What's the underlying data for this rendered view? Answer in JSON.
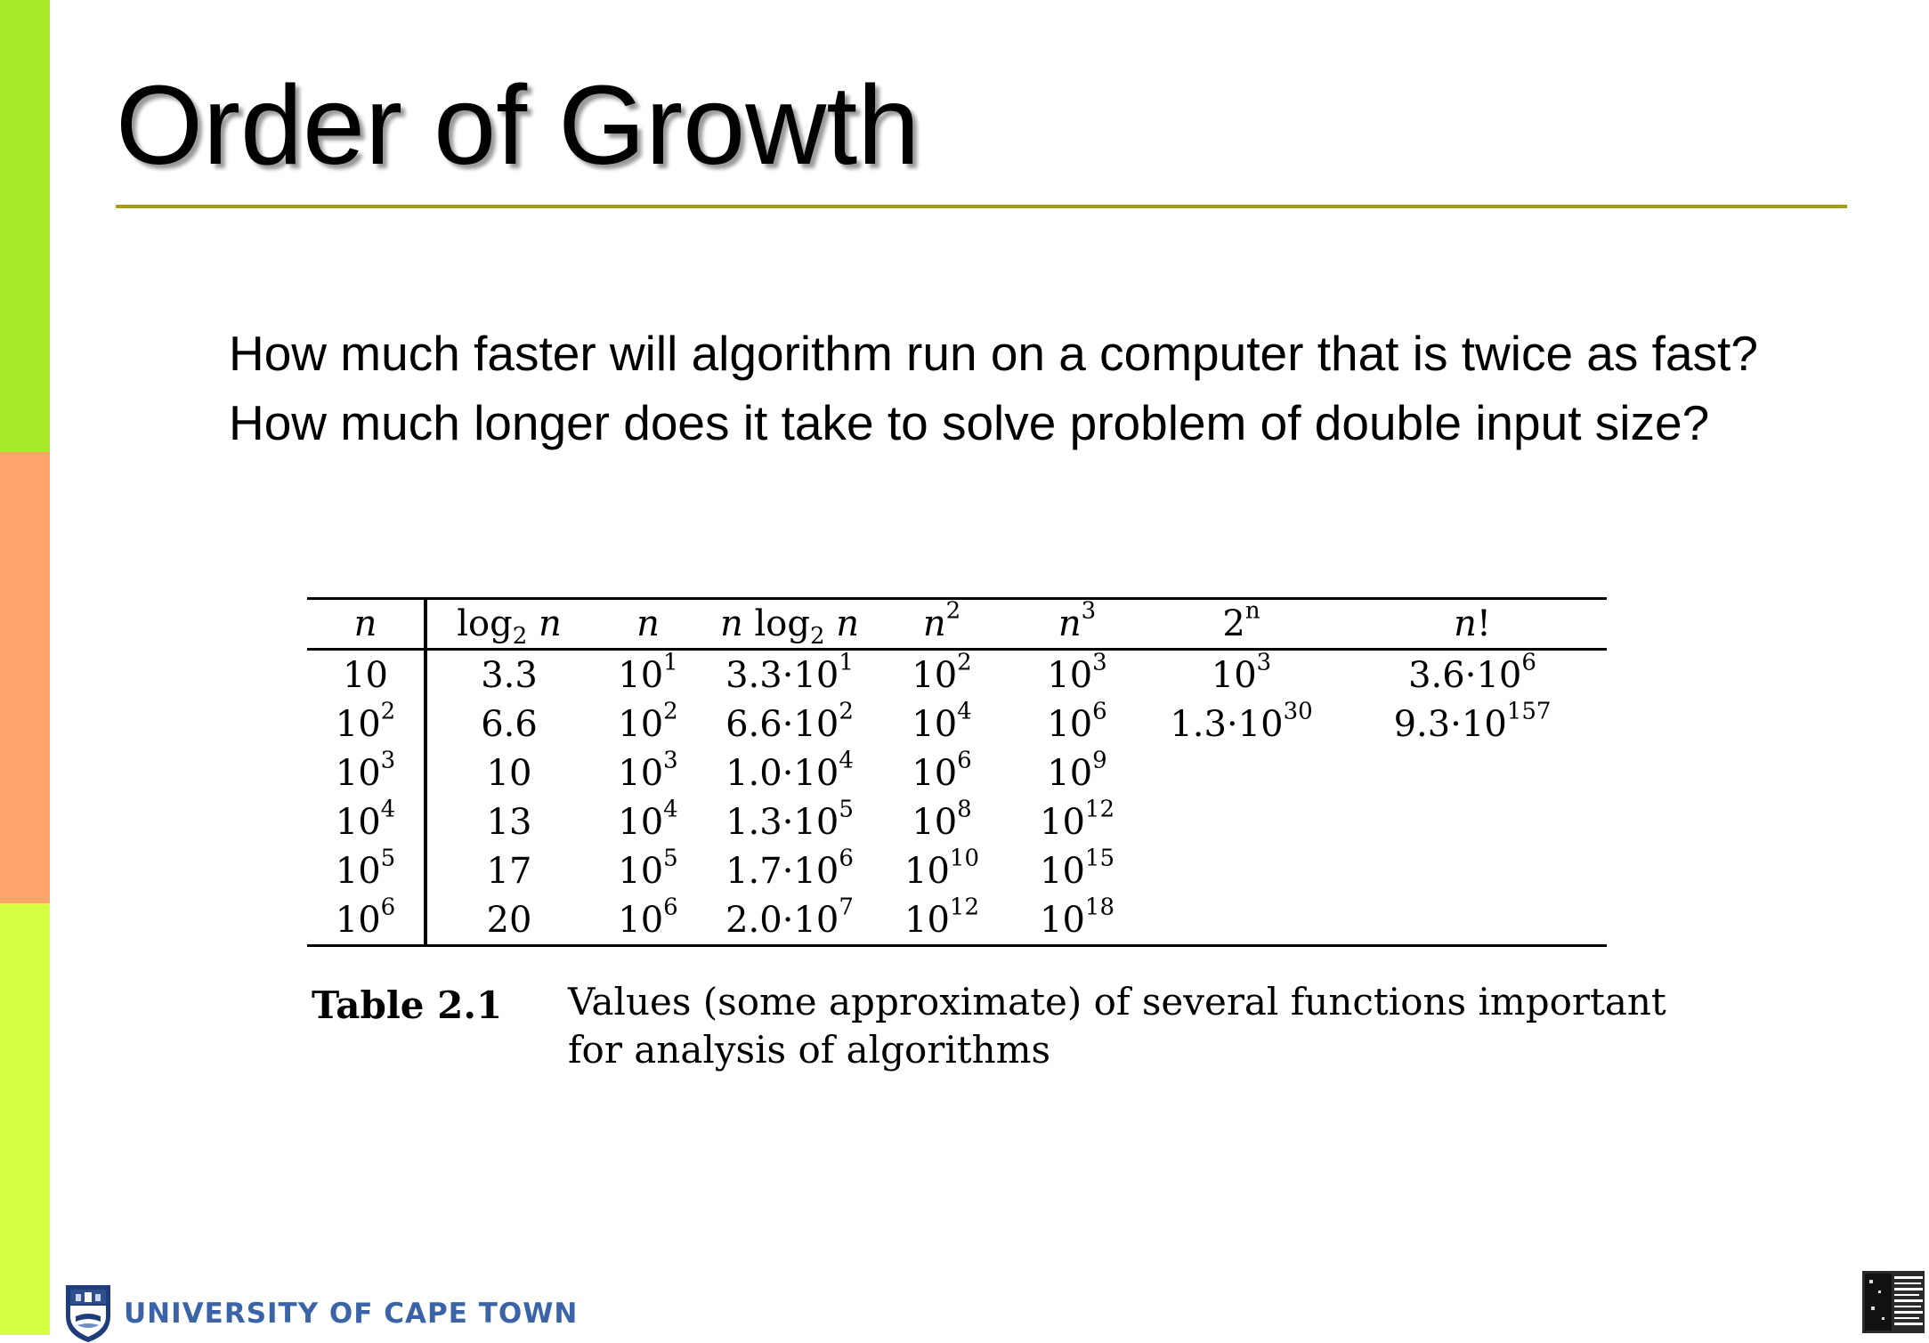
{
  "slide": {
    "title": "Order of Growth",
    "questions": [
      "How much faster will algorithm run on a computer that is twice as fast?",
      "How much longer does it take to solve problem of double input size?"
    ],
    "colors": {
      "sidebar_top": "#a8ea2a",
      "sidebar_middle": "#ffa46c",
      "sidebar_bottom": "#d4ff42",
      "title_rule": "#a59d1b",
      "footer_text": "#3b64a8"
    }
  },
  "table": {
    "columns": [
      {
        "var": "n",
        "pre": "",
        "sub": "",
        "var2": "",
        "sup": "",
        "post": ""
      },
      {
        "var": "",
        "pre": "log",
        "sub": "2",
        "var2": "n",
        "sup": "",
        "post": ""
      },
      {
        "var": "n",
        "pre": "",
        "sub": "",
        "var2": "",
        "sup": "",
        "post": ""
      },
      {
        "var": "n",
        "pre": " log",
        "sub": "2",
        "var2": "n",
        "sup": "",
        "post": ""
      },
      {
        "var": "n",
        "pre": "",
        "sub": "",
        "var2": "",
        "sup": "2",
        "post": ""
      },
      {
        "var": "n",
        "pre": "",
        "sub": "",
        "var2": "",
        "sup": "3",
        "post": ""
      },
      {
        "var": "",
        "pre": "2",
        "sub": "",
        "var2": "",
        "sup": "n",
        "post": ""
      },
      {
        "var": "n",
        "pre": "",
        "sub": "",
        "var2": "",
        "sup": "",
        "post": "!"
      }
    ],
    "rows": [
      [
        {
          "base": "10",
          "exp": ""
        },
        {
          "base": "3.3",
          "exp": ""
        },
        {
          "base": "10",
          "exp": "1"
        },
        {
          "base": "3.3·10",
          "exp": "1"
        },
        {
          "base": "10",
          "exp": "2"
        },
        {
          "base": "10",
          "exp": "3"
        },
        {
          "base": "10",
          "exp": "3"
        },
        {
          "base": "3.6·10",
          "exp": "6"
        }
      ],
      [
        {
          "base": "10",
          "exp": "2"
        },
        {
          "base": "6.6",
          "exp": ""
        },
        {
          "base": "10",
          "exp": "2"
        },
        {
          "base": "6.6·10",
          "exp": "2"
        },
        {
          "base": "10",
          "exp": "4"
        },
        {
          "base": "10",
          "exp": "6"
        },
        {
          "base": "1.3·10",
          "exp": "30"
        },
        {
          "base": "9.3·10",
          "exp": "157"
        }
      ],
      [
        {
          "base": "10",
          "exp": "3"
        },
        {
          "base": "10",
          "exp": ""
        },
        {
          "base": "10",
          "exp": "3"
        },
        {
          "base": "1.0·10",
          "exp": "4"
        },
        {
          "base": "10",
          "exp": "6"
        },
        {
          "base": "10",
          "exp": "9"
        },
        {
          "base": "",
          "exp": ""
        },
        {
          "base": "",
          "exp": ""
        }
      ],
      [
        {
          "base": "10",
          "exp": "4"
        },
        {
          "base": "13",
          "exp": ""
        },
        {
          "base": "10",
          "exp": "4"
        },
        {
          "base": "1.3·10",
          "exp": "5"
        },
        {
          "base": "10",
          "exp": "8"
        },
        {
          "base": "10",
          "exp": "12"
        },
        {
          "base": "",
          "exp": ""
        },
        {
          "base": "",
          "exp": ""
        }
      ],
      [
        {
          "base": "10",
          "exp": "5"
        },
        {
          "base": "17",
          "exp": ""
        },
        {
          "base": "10",
          "exp": "5"
        },
        {
          "base": "1.7·10",
          "exp": "6"
        },
        {
          "base": "10",
          "exp": "10"
        },
        {
          "base": "10",
          "exp": "15"
        },
        {
          "base": "",
          "exp": ""
        },
        {
          "base": "",
          "exp": ""
        }
      ],
      [
        {
          "base": "10",
          "exp": "6"
        },
        {
          "base": "20",
          "exp": ""
        },
        {
          "base": "10",
          "exp": "6"
        },
        {
          "base": "2.0·10",
          "exp": "7"
        },
        {
          "base": "10",
          "exp": "12"
        },
        {
          "base": "10",
          "exp": "18"
        },
        {
          "base": "",
          "exp": ""
        },
        {
          "base": "",
          "exp": ""
        }
      ]
    ],
    "caption_label": "Table 2.1",
    "caption_line1": "Values (some approximate) of several functions important",
    "caption_line2": "for analysis of algorithms"
  },
  "footer": {
    "university_name": "UNIVERSITY OF CAPE TOWN",
    "logo_icon": "uct-crest-icon",
    "corner_icon": "barcode-pattern-icon"
  }
}
